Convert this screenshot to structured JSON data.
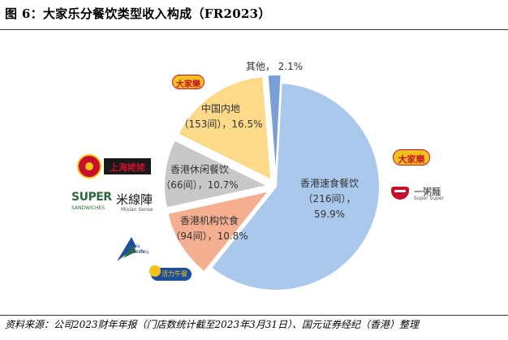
{
  "figure": {
    "title": "图 6：大家乐分餐饮类型收入构成（FR2023）",
    "source": "资料来源：公司2023财年年报（门店数统计截至2023年3月31日）、国元证券经纪（香港）整理"
  },
  "chart_data": {
    "type": "pie",
    "title": "",
    "slices": [
      {
        "name": "香港速食餐饮",
        "stores": "（216间），",
        "value": 59.9,
        "percent": "59.9%",
        "color": "#a9c8ec"
      },
      {
        "name": "香港机构饮食",
        "stores": "（94间），",
        "value": 10.8,
        "percent": "10.8%",
        "color": "#f4ae90"
      },
      {
        "name": "香港休闲餐饮",
        "stores": "（66间），",
        "value": 10.7,
        "percent": "10.7%",
        "color": "#c8c8c8"
      },
      {
        "name": "中国内地",
        "stores": "（153间），",
        "value": 16.5,
        "percent": "16.5%",
        "color": "#fdd98a"
      },
      {
        "name": "其他，",
        "stores": "",
        "value": 2.1,
        "percent": "2.1%",
        "color": "#7a9fd6"
      }
    ]
  },
  "logos": {
    "cafe_de_coral": "大家樂",
    "super_super": "Super Super",
    "super_super_cn": "一粥麵",
    "shanghai_lao_lao": "上海姥姥",
    "super_sandwiches_1": "SUPER",
    "super_sandwiches_2": "SANDWICHES",
    "mixian": "米線陣",
    "mixian_sub": "Mixian Sense",
    "asia_pacific": "Asia Pacific",
    "asia_pacific_sub": "Catering",
    "vital": "活力午餐"
  },
  "colors": {
    "logo_yellow": "#f3c21b",
    "logo_red": "#c8102e",
    "logo_dark": "#1a1a1a",
    "logo_green": "#2d6a3e",
    "logo_blue": "#1d4f9a"
  }
}
